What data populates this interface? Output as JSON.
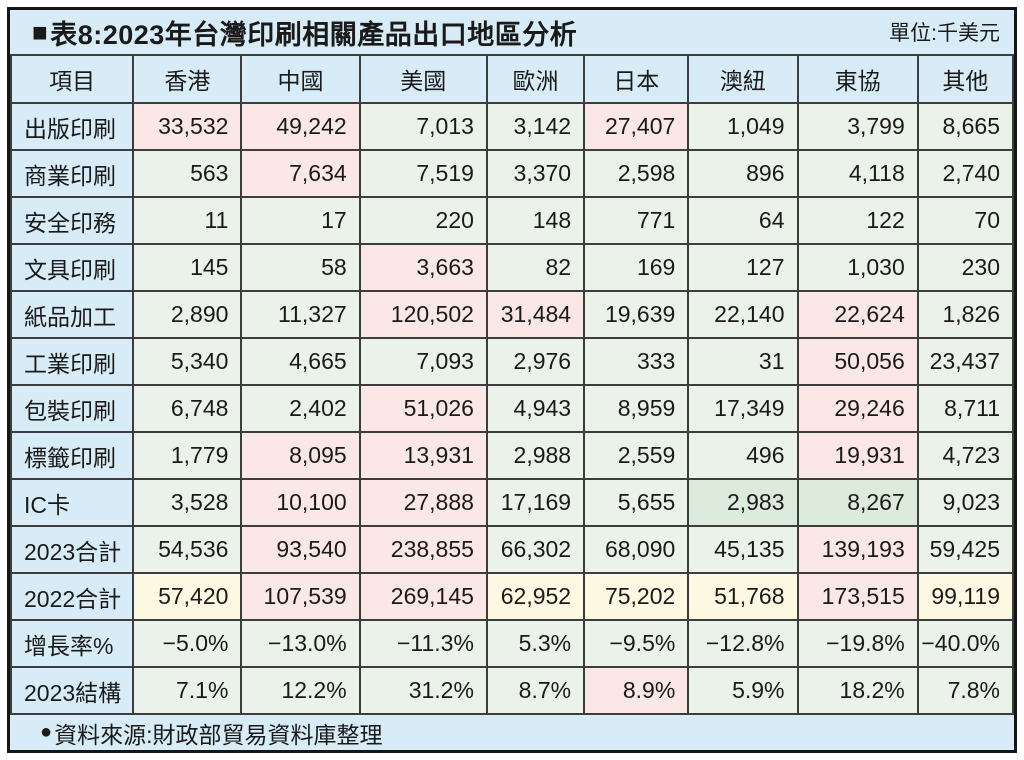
{
  "title": {
    "square_icon": "■",
    "text": "表8:2023年台灣印刷相關產品出口地區分析",
    "unit": "單位:千美元"
  },
  "footer": {
    "bullet_icon": "●",
    "text": "資料來源:財政部貿易資料庫整理"
  },
  "colors": {
    "panel_blue": "#d8ecf8",
    "cell_green": "#ebf2ea",
    "cell_pink": "#fbe7e5",
    "cell_cream": "#fcf8e2",
    "cell_dark_green": "#dcebdb",
    "border": "#3d3d3d",
    "outer_border": "#151515",
    "text": "#1a1a1a"
  },
  "chart_data": {
    "type": "table",
    "title": "表8:2023年台灣印刷相關產品出口地區分析",
    "unit_label": "單位:千美元",
    "columns": [
      "項目",
      "香港",
      "中國",
      "美國",
      "歐洲",
      "日本",
      "澳紐",
      "東協",
      "其他"
    ],
    "column_widths_pct": [
      12.2,
      10.8,
      11.8,
      12.7,
      9.7,
      10.4,
      10.9,
      12.0,
      9.5
    ],
    "highlight_legend": {
      "g": "green (default cell)",
      "p": "pink (highlighted cell)",
      "c": "cream (2022 totals row)",
      "d": "darker green (emphasized cell)"
    },
    "rows": [
      {
        "label": "出版印刷",
        "values": [
          "33,532",
          "49,242",
          "7,013",
          "3,142",
          "27,407",
          "1,049",
          "3,799",
          "8,665"
        ],
        "highlights": [
          "p",
          "p",
          "g",
          "g",
          "p",
          "g",
          "g",
          "g"
        ]
      },
      {
        "label": "商業印刷",
        "values": [
          "563",
          "7,634",
          "7,519",
          "3,370",
          "2,598",
          "896",
          "4,118",
          "2,740"
        ],
        "highlights": [
          "g",
          "p",
          "g",
          "g",
          "g",
          "g",
          "g",
          "g"
        ]
      },
      {
        "label": "安全印務",
        "values": [
          "11",
          "17",
          "220",
          "148",
          "771",
          "64",
          "122",
          "70"
        ],
        "highlights": [
          "g",
          "g",
          "g",
          "g",
          "g",
          "g",
          "g",
          "g"
        ]
      },
      {
        "label": "文具印刷",
        "values": [
          "145",
          "58",
          "3,663",
          "82",
          "169",
          "127",
          "1,030",
          "230"
        ],
        "highlights": [
          "g",
          "g",
          "p",
          "g",
          "g",
          "g",
          "g",
          "g"
        ]
      },
      {
        "label": "紙品加工",
        "values": [
          "2,890",
          "11,327",
          "120,502",
          "31,484",
          "19,639",
          "22,140",
          "22,624",
          "1,826"
        ],
        "highlights": [
          "g",
          "g",
          "p",
          "p",
          "g",
          "g",
          "p",
          "g"
        ]
      },
      {
        "label": "工業印刷",
        "values": [
          "5,340",
          "4,665",
          "7,093",
          "2,976",
          "333",
          "31",
          "50,056",
          "23,437"
        ],
        "highlights": [
          "g",
          "g",
          "g",
          "g",
          "g",
          "g",
          "p",
          "g"
        ]
      },
      {
        "label": "包裝印刷",
        "values": [
          "6,748",
          "2,402",
          "51,026",
          "4,943",
          "8,959",
          "17,349",
          "29,246",
          "8,711"
        ],
        "highlights": [
          "g",
          "g",
          "p",
          "g",
          "g",
          "g",
          "p",
          "g"
        ]
      },
      {
        "label": "標籤印刷",
        "values": [
          "1,779",
          "8,095",
          "13,931",
          "2,988",
          "2,559",
          "496",
          "19,931",
          "4,723"
        ],
        "highlights": [
          "g",
          "p",
          "p",
          "g",
          "g",
          "g",
          "p",
          "g"
        ]
      },
      {
        "label": "IC卡",
        "values": [
          "3,528",
          "10,100",
          "27,888",
          "17,169",
          "5,655",
          "2,983",
          "8,267",
          "9,023"
        ],
        "highlights": [
          "g",
          "p",
          "p",
          "g",
          "g",
          "d",
          "d",
          "g"
        ]
      },
      {
        "label": "2023合計",
        "values": [
          "54,536",
          "93,540",
          "238,855",
          "66,302",
          "68,090",
          "45,135",
          "139,193",
          "59,425"
        ],
        "highlights": [
          "g",
          "p",
          "p",
          "g",
          "g",
          "g",
          "p",
          "g"
        ]
      },
      {
        "label": "2022合計",
        "values": [
          "57,420",
          "107,539",
          "269,145",
          "62,952",
          "75,202",
          "51,768",
          "173,515",
          "99,119"
        ],
        "highlights": [
          "c",
          "p",
          "p",
          "c",
          "c",
          "c",
          "p",
          "c"
        ]
      },
      {
        "label": "增長率%",
        "values": [
          "−5.0%",
          "−13.0%",
          "−11.3%",
          "5.3%",
          "−9.5%",
          "−12.8%",
          "−19.8%",
          "−40.0%"
        ],
        "highlights": [
          "g",
          "g",
          "g",
          "g",
          "g",
          "g",
          "g",
          "g"
        ]
      },
      {
        "label": "2023結構",
        "values": [
          "7.1%",
          "12.2%",
          "31.2%",
          "8.7%",
          "8.9%",
          "5.9%",
          "18.2%",
          "7.8%"
        ],
        "highlights": [
          "g",
          "g",
          "g",
          "g",
          "p",
          "g",
          "g",
          "g"
        ]
      }
    ],
    "source_note": "資料來源:財政部貿易資料庫整理"
  }
}
